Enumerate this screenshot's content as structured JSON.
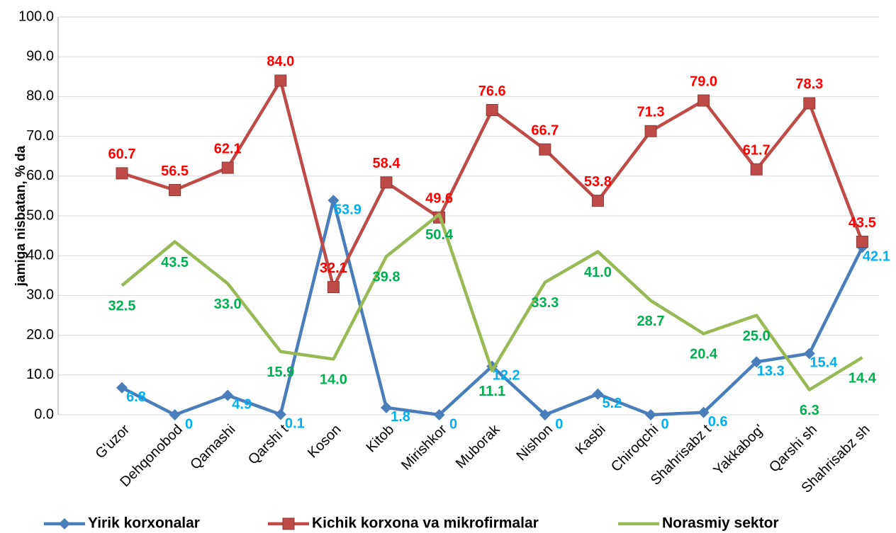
{
  "chart_data": {
    "type": "line",
    "y_label": "jamiga nisbatan, % da",
    "categories": [
      "G'uzor",
      "Dehqonobod",
      "Qamashi",
      "Qarshi t",
      "Koson",
      "Kitob",
      "Mirishkor",
      "Muborak",
      "Nishon",
      "Kasbi",
      "Chiroqchi",
      "Shahrisabz t",
      "Yakkabog'",
      "Qarshi sh",
      "Shahrisabz sh"
    ],
    "series": [
      {
        "name": "Yirik korxonalar",
        "color": "#4a7ebb",
        "label_color": "#00b0f0",
        "marker": "diamond",
        "values": [
          6.8,
          0,
          4.9,
          0.1,
          53.9,
          1.8,
          0,
          12.2,
          0,
          5.2,
          0,
          0.6,
          13.3,
          15.4,
          42.1
        ],
        "value_labels": [
          "6.8",
          "0",
          "4.9",
          "0.1",
          "53.9",
          "1.8",
          "0",
          "12.2",
          "0",
          "5.2",
          "0",
          "0.6",
          "13.3",
          "15.4",
          "42.1"
        ]
      },
      {
        "name": "Kichik korxona va mikrofirmalar",
        "color": "#be4b48",
        "label_color": "#ff0000",
        "marker": "square",
        "values": [
          60.7,
          56.5,
          62.1,
          84.0,
          32.1,
          58.4,
          49.6,
          76.6,
          66.7,
          53.8,
          71.3,
          79.0,
          61.7,
          78.3,
          43.5
        ],
        "value_labels": [
          "60.7",
          "56.5",
          "62.1",
          "84.0",
          "32.1",
          "58.4",
          "49.6",
          "76.6",
          "66.7",
          "53.8",
          "71.3",
          "79.0",
          "61.7",
          "78.3",
          "43.5"
        ]
      },
      {
        "name": "Norasmiy sektor",
        "color": "#98b954",
        "label_color": "#00b050",
        "marker": "none",
        "values": [
          32.5,
          43.5,
          33.0,
          15.9,
          14.0,
          39.8,
          50.4,
          11.1,
          33.3,
          41.0,
          28.7,
          20.4,
          25.0,
          6.3,
          14.4
        ],
        "value_labels": [
          "32.5",
          "43.5",
          "33.0",
          "15.9",
          "14.0",
          "39.8",
          "50.4",
          "11.1",
          "33.3",
          "41.0",
          "28.7",
          "20.4",
          "25.0",
          "6.3",
          "14.4"
        ]
      }
    ],
    "ylim": [
      0,
      100
    ],
    "yticks": [
      {
        "value": 0,
        "label": "0.0"
      },
      {
        "value": 10,
        "label": "10.0"
      },
      {
        "value": 20,
        "label": "20.0"
      },
      {
        "value": 30,
        "label": "30.0"
      },
      {
        "value": 40,
        "label": "40.0"
      },
      {
        "value": 50,
        "label": "50.0"
      },
      {
        "value": 60,
        "label": "60.0"
      },
      {
        "value": 70,
        "label": "70.0"
      },
      {
        "value": 80,
        "label": "80.0"
      },
      {
        "value": 90,
        "label": "90.0"
      },
      {
        "value": 100,
        "label": "100.0"
      }
    ],
    "grid": true,
    "legend": "bottom"
  }
}
